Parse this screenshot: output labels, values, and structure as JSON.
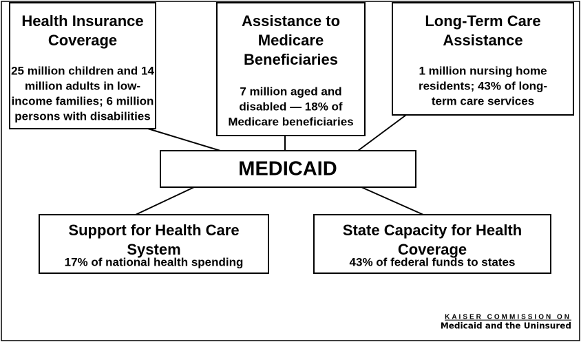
{
  "nodes": [
    {
      "title": [
        "Health Insurance",
        "Coverage"
      ],
      "text": [
        "25 million children and 14",
        "million adults in low-",
        "income families; 6 million",
        "persons with disabilities"
      ]
    },
    {
      "title": [
        "Assistance to",
        "Medicare",
        "Beneficiaries"
      ],
      "text": [
        "7 million aged and",
        "disabled — 18% of",
        "Medicare beneficiaries"
      ]
    },
    {
      "title": [
        "Long-Term Care",
        "Assistance"
      ],
      "text": [
        "1 million nursing home",
        "residents; 43% of long-",
        "term care services"
      ]
    },
    {
      "title": [
        "Support for Health Care",
        "System"
      ],
      "text": [
        "17% of national health spending"
      ]
    },
    {
      "title": [
        "State Capacity for Health",
        "Coverage"
      ],
      "text": [
        "43% of federal funds to states"
      ]
    }
  ],
  "center": "MEDICAID",
  "logo": {
    "line1": "KAISER COMMISSION ON",
    "line2": "Medicaid and the Uninsured"
  }
}
